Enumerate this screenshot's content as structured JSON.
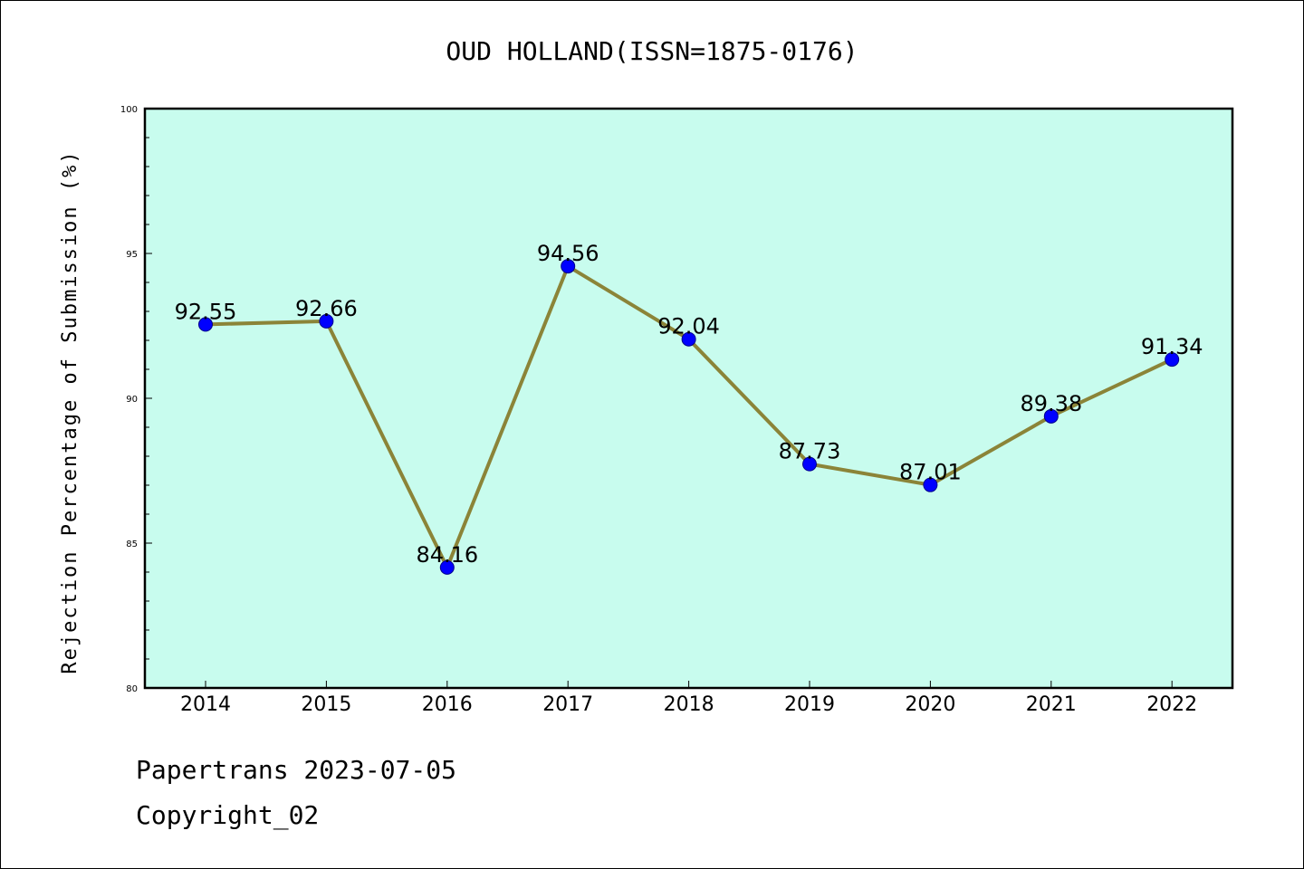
{
  "footer": {
    "line1": "Papertrans 2023-07-05",
    "line2": "Copyright_02"
  },
  "colors": {
    "plot_background": "#c8fcee",
    "line": "#8b8438",
    "marker": "#0000ff"
  },
  "chart_data": {
    "type": "line",
    "title": "OUD HOLLAND(ISSN=1875-0176)",
    "xlabel": "",
    "ylabel": "Rejection Percentage of Submission (%)",
    "categories": [
      "2014",
      "2015",
      "2016",
      "2017",
      "2018",
      "2019",
      "2020",
      "2021",
      "2022"
    ],
    "series": [
      {
        "values": [
          92.55,
          92.66,
          84.16,
          94.56,
          92.04,
          87.73,
          87.01,
          89.38,
          91.34
        ],
        "labels": [
          "92.55",
          "92.66",
          "84.16",
          "94.56",
          "92.04",
          "87.73",
          "87.01",
          "89.38",
          "91.34"
        ]
      }
    ],
    "ylim": [
      80,
      100
    ],
    "yticks": [
      80,
      85,
      90,
      95,
      100
    ],
    "grid": false,
    "legend": "none"
  }
}
